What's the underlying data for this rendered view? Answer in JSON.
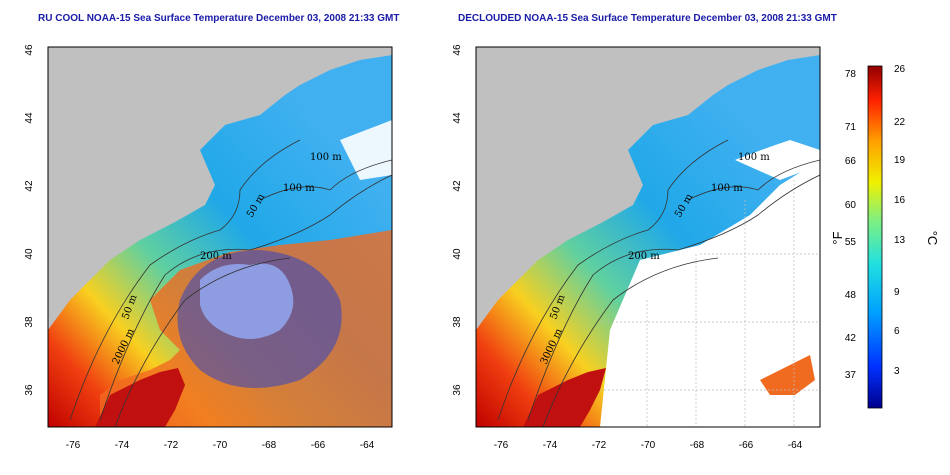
{
  "left_panel": {
    "title": "RU COOL NOAA-15 Sea Surface Temperature December 03, 2008 21:33 GMT",
    "contour_labels": [
      "100 m",
      "100 m",
      "50 m",
      "200 m",
      "50 m",
      "2000 m"
    ]
  },
  "right_panel": {
    "title": "DECLOUDED NOAA-15 Sea Surface Temperature December 03, 2008 21:33 GMT",
    "contour_labels": [
      "100 m",
      "100 m",
      "50 m",
      "200 m",
      "50 m",
      "3000 m"
    ]
  },
  "axes": {
    "lat_ticks": [
      "36",
      "38",
      "40",
      "42",
      "44",
      "46"
    ],
    "lon_ticks": [
      "-76",
      "-74",
      "-72",
      "-70",
      "-68",
      "-66",
      "-64"
    ]
  },
  "colorbar": {
    "fahrenheit_ticks": [
      "78",
      "71",
      "66",
      "60",
      "55",
      "48",
      "42",
      "37"
    ],
    "celsius_ticks": [
      "26",
      "22",
      "19",
      "16",
      "13",
      "9",
      "6",
      "3"
    ],
    "unit_f": "°F",
    "unit_c": "°C"
  },
  "colors": {
    "land": "#c0c0c0",
    "title": "#1a1aa8",
    "cloud": "#ffffff"
  }
}
